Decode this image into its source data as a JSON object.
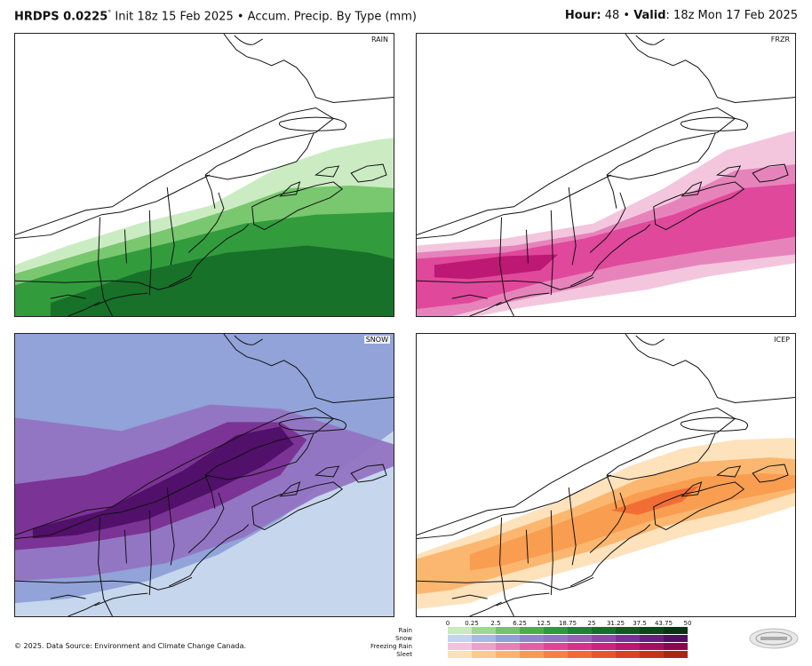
{
  "header": {
    "model": "HRDPS 0.0225",
    "degree": "°",
    "init_text": " Init 18z 15 Feb 2025 • Accum. Precip. By Type (mm)",
    "hour_label": "Hour:",
    "hour_value": " 48 • ",
    "valid_label": "Valid",
    "valid_value": ": 18z Mon 17 Feb 2025"
  },
  "panels": {
    "rain": "RAIN",
    "frzr": "FRZR",
    "snow": "SNOW",
    "icep": "ICEP"
  },
  "legend": {
    "ticks": [
      "0",
      "0.25",
      "2.5",
      "6.25",
      "12.5",
      "18.75",
      "25",
      "31.25",
      "37.5",
      "43.75",
      "50"
    ],
    "rows": [
      {
        "name": "Rain",
        "colors": [
          "#c8ebc0",
          "#9ed993",
          "#74c56a",
          "#4aaf47",
          "#2e9a3a",
          "#1f8431",
          "#166f28",
          "#0f5a20",
          "#0a4719",
          "#063513"
        ]
      },
      {
        "name": "Snow",
        "colors": [
          "#c3d4ec",
          "#a6b9e2",
          "#8ea0d8",
          "#8d86cc",
          "#9474c2",
          "#9a5fb5",
          "#8d47a6",
          "#7a2f94",
          "#661c80",
          "#4f0f66"
        ]
      },
      {
        "name": "Freezing Rain",
        "colors": [
          "#f2c3dc",
          "#eba2cb",
          "#e680b8",
          "#e260a8",
          "#df4599",
          "#d8318c",
          "#cc2380",
          "#bb1672",
          "#a50c62",
          "#8c0652"
        ]
      },
      {
        "name": "Sleet",
        "colors": [
          "#fde0b8",
          "#fcca8c",
          "#fbb46a",
          "#f99b4f",
          "#f6823f",
          "#f06a33",
          "#e8552b",
          "#d94224",
          "#c3321d",
          "#a82616"
        ]
      }
    ]
  },
  "footer": {
    "copyright": "© 2025. Data Source: Environment and Climate Change Canada."
  },
  "colors": {
    "rain": [
      "#c8ebc0",
      "#74c56a",
      "#2e9a3a",
      "#166f28"
    ],
    "frzr": [
      "#f2c3dc",
      "#e680b8",
      "#df4599",
      "#bb1672"
    ],
    "snow": [
      "#c3d4ec",
      "#8ea0d8",
      "#9474c2",
      "#7a2f94",
      "#4f0f66"
    ],
    "icep": [
      "#fde0b8",
      "#fbb46a",
      "#f99b4f",
      "#f06a33"
    ]
  }
}
